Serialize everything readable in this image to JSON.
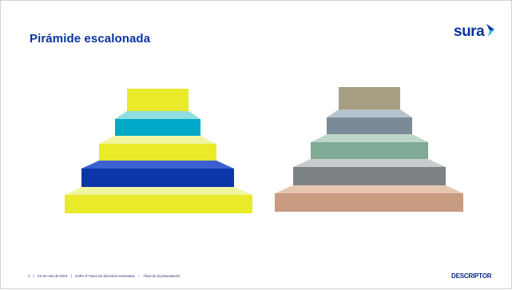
{
  "slide": {
    "title": "Pirámide escalonada",
    "logo_text": "sura",
    "logo_icon": "sura-chevron-icon",
    "footer": {
      "page_number": "1",
      "separator": "|",
      "date": "XX de mes de 20XX",
      "copyright": "SURA ® Todos los derechos reservados",
      "dash": "–",
      "presentation_title": "Título de la presentación",
      "tag": "DESCRIPTOR"
    }
  },
  "colors": {
    "brand_blue": "#0a33a0",
    "logo_accent": "#2fb6e6"
  },
  "pyramids": [
    {
      "name": "left",
      "steps": [
        {
          "top": "#e8ea2a",
          "face": "#e8ea2a"
        },
        {
          "top": "#8fdde1",
          "face": "#00a9c7"
        },
        {
          "top": "#f0f5a0",
          "face": "#e8ea2a"
        },
        {
          "top": "#3c5fd2",
          "face": "#0a36a8"
        },
        {
          "top": "#f0f5a0",
          "face": "#e8ea2a"
        }
      ]
    },
    {
      "name": "right",
      "steps": [
        {
          "top": "#a89e84",
          "face": "#a89e84"
        },
        {
          "top": "#b7c3cc",
          "face": "#7a8b97"
        },
        {
          "top": "#bdd6c8",
          "face": "#7faa96"
        },
        {
          "top": "#c8ccce",
          "face": "#7d8385"
        },
        {
          "top": "#e6c6b0",
          "face": "#c89c80"
        }
      ]
    }
  ]
}
